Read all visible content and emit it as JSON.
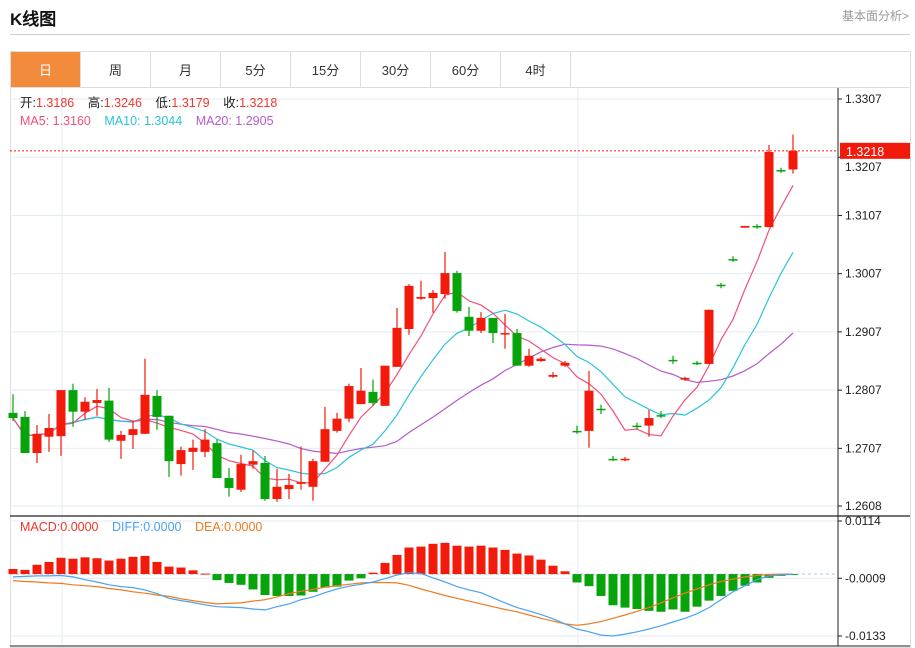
{
  "header": {
    "title": "K线图",
    "link": "基本面分析>"
  },
  "tabs": [
    {
      "label": "日",
      "active": true
    },
    {
      "label": "周"
    },
    {
      "label": "月"
    },
    {
      "label": "5分"
    },
    {
      "label": "15分"
    },
    {
      "label": "30分"
    },
    {
      "label": "60分"
    },
    {
      "label": "4时"
    }
  ],
  "ohlc_legend": {
    "open_label": "开:",
    "open": "1.3186",
    "high_label": "高:",
    "high": "1.3246",
    "low_label": "低:",
    "low": "1.3179",
    "close_label": "收:",
    "close": "1.3218"
  },
  "ma_legend": {
    "ma5": "MA5: 1.3160",
    "ma10": "MA10: 1.3044",
    "ma20": "MA20: 1.2905"
  },
  "macd_legend": {
    "macd": "MACD:0.0000",
    "diff": "DIFF:0.0000",
    "dea": "DEA:0.0000"
  },
  "colors": {
    "up": "#f21a0a",
    "down": "#06a30b",
    "ma5": "#f0507a",
    "ma10": "#29c4d8",
    "ma20": "#b45bc9",
    "diff": "#4aa3f0",
    "dea": "#f07a1e",
    "accent": "#f28b3c"
  },
  "chart_data": {
    "type": "candlestick",
    "current_price": "1.3218",
    "price_axis": {
      "ticks": [
        "1.3307",
        "1.3207",
        "1.3107",
        "1.3007",
        "1.2907",
        "1.2807",
        "1.2707",
        "1.2608"
      ],
      "range": [
        1.2608,
        1.3307
      ]
    },
    "macd_axis": {
      "ticks": [
        "0.0114",
        "-0.0009",
        "-0.0133"
      ],
      "range": [
        -0.0133,
        0.0114
      ]
    },
    "ohlc": [
      [
        1.2768,
        1.28,
        1.2754,
        1.2759
      ],
      [
        1.2761,
        1.2771,
        1.2699,
        1.2699
      ],
      [
        1.2699,
        1.2747,
        1.2682,
        1.2732
      ],
      [
        1.2727,
        1.2766,
        1.2701,
        1.2742
      ],
      [
        1.2728,
        1.2807,
        1.2694,
        1.2807
      ],
      [
        1.2807,
        1.2818,
        1.2744,
        1.277
      ],
      [
        1.277,
        1.2795,
        1.2756,
        1.2787
      ],
      [
        1.2785,
        1.2809,
        1.2763,
        1.279
      ],
      [
        1.2789,
        1.2811,
        1.2718,
        1.2722
      ],
      [
        1.272,
        1.2737,
        1.2689,
        1.273
      ],
      [
        1.273,
        1.2754,
        1.2706,
        1.274
      ],
      [
        1.2732,
        1.2861,
        1.2732,
        1.2799
      ],
      [
        1.2797,
        1.2807,
        1.2739,
        1.2761
      ],
      [
        1.2763,
        1.2763,
        1.2658,
        1.2685
      ],
      [
        1.268,
        1.271,
        1.266,
        1.2704
      ],
      [
        1.2701,
        1.2722,
        1.267,
        1.2708
      ],
      [
        1.2701,
        1.274,
        1.2692,
        1.2722
      ],
      [
        1.2716,
        1.2722,
        1.2656,
        1.2656
      ],
      [
        1.2656,
        1.2673,
        1.2624,
        1.2639
      ],
      [
        1.2636,
        1.2696,
        1.2632,
        1.268
      ],
      [
        1.2679,
        1.2703,
        1.2672,
        1.2685
      ],
      [
        1.2682,
        1.2694,
        1.2617,
        1.262
      ],
      [
        1.262,
        1.2672,
        1.2615,
        1.2641
      ],
      [
        1.2637,
        1.2663,
        1.262,
        1.2644
      ],
      [
        1.2646,
        1.271,
        1.2636,
        1.2649
      ],
      [
        1.2641,
        1.2689,
        1.2617,
        1.2685
      ],
      [
        1.2684,
        1.2778,
        1.2684,
        1.274
      ],
      [
        1.2737,
        1.2768,
        1.2734,
        1.2758
      ],
      [
        1.2758,
        1.2818,
        1.2752,
        1.2814
      ],
      [
        1.2783,
        1.2845,
        1.2783,
        1.2806
      ],
      [
        1.2804,
        1.2825,
        1.278,
        1.2785
      ],
      [
        1.278,
        1.2849,
        1.278,
        1.2849
      ],
      [
        1.2847,
        1.2948,
        1.2847,
        1.2914
      ],
      [
        1.2912,
        1.2989,
        1.2902,
        1.2986
      ],
      [
        1.2964,
        1.2995,
        1.2962,
        1.2967
      ],
      [
        1.2965,
        1.2979,
        1.294,
        1.2974
      ],
      [
        1.2972,
        1.3044,
        1.2964,
        1.3008
      ],
      [
        1.3008,
        1.3012,
        1.294,
        1.2943
      ],
      [
        1.2933,
        1.295,
        1.29,
        1.2909
      ],
      [
        1.2909,
        1.2941,
        1.2905,
        1.2931
      ],
      [
        1.2931,
        1.2931,
        1.2888,
        1.2905
      ],
      [
        1.2904,
        1.2938,
        1.2878,
        1.2905
      ],
      [
        1.2905,
        1.2912,
        1.2849,
        1.2849
      ],
      [
        1.2849,
        1.2878,
        1.2847,
        1.2866
      ],
      [
        1.2857,
        1.2864,
        1.2855,
        1.2861
      ],
      [
        1.283,
        1.2838,
        1.2828,
        1.2833
      ],
      [
        1.2849,
        1.2857,
        1.2847,
        1.2854
      ],
      [
        1.2737,
        1.2746,
        1.2732,
        1.2735
      ],
      [
        1.2737,
        1.284,
        1.2708,
        1.2806
      ],
      [
        1.2775,
        1.2782,
        1.2766,
        1.2773
      ],
      [
        1.2689,
        1.2694,
        1.2685,
        1.2688
      ],
      [
        1.2688,
        1.2692,
        1.2685,
        1.2689
      ],
      [
        1.2746,
        1.2751,
        1.274,
        1.2744
      ],
      [
        1.2746,
        1.2773,
        1.2727,
        1.2759
      ],
      [
        1.2764,
        1.2771,
        1.2759,
        1.2763
      ],
      [
        1.2859,
        1.2866,
        1.2852,
        1.2857
      ],
      [
        1.2825,
        1.283,
        1.2823,
        1.2828
      ],
      [
        1.2854,
        1.2857,
        1.285,
        1.2852
      ],
      [
        1.2852,
        1.2945,
        1.2852,
        1.2945
      ],
      [
        1.2988,
        1.2991,
        1.2982,
        1.2986
      ],
      [
        1.3032,
        1.3037,
        1.3027,
        1.3031
      ],
      [
        1.3086,
        1.3089,
        1.3086,
        1.3089
      ],
      [
        1.3089,
        1.3092,
        1.3084,
        1.3087
      ],
      [
        1.3087,
        1.3228,
        1.3087,
        1.3216
      ],
      [
        1.3185,
        1.3189,
        1.318,
        1.3183
      ],
      [
        1.3186,
        1.3246,
        1.3179,
        1.3218
      ]
    ],
    "macd_hist": [
      0.0011,
      0.0009,
      0.002,
      0.0026,
      0.0035,
      0.0033,
      0.0036,
      0.0034,
      0.0029,
      0.0033,
      0.0037,
      0.0039,
      0.0026,
      0.0016,
      0.0014,
      0.0008,
      0.0001,
      -0.0013,
      -0.0019,
      -0.0023,
      -0.0033,
      -0.0045,
      -0.0047,
      -0.0047,
      -0.0046,
      -0.0038,
      -0.0029,
      -0.0027,
      -0.0014,
      -0.0009,
      0.0003,
      0.0024,
      0.0041,
      0.0057,
      0.0059,
      0.0065,
      0.0067,
      0.0061,
      0.0059,
      0.0061,
      0.0057,
      0.0052,
      0.0044,
      0.004,
      0.0031,
      0.0018,
      0.0006,
      -0.0018,
      -0.0026,
      -0.0047,
      -0.0067,
      -0.0072,
      -0.0075,
      -0.0079,
      -0.0081,
      -0.0076,
      -0.0081,
      -0.007,
      -0.0057,
      -0.0047,
      -0.0036,
      -0.0025,
      -0.0018,
      -0.0008,
      -0.0004,
      -0.0001
    ],
    "diff": [
      -0.0006,
      -0.0005,
      -0.0004,
      -0.0004,
      -0.0003,
      -0.0006,
      -0.0012,
      -0.0017,
      -0.0023,
      -0.0027,
      -0.0029,
      -0.0034,
      -0.0042,
      -0.0052,
      -0.0057,
      -0.0061,
      -0.0066,
      -0.007,
      -0.0071,
      -0.0072,
      -0.0075,
      -0.0077,
      -0.007,
      -0.0064,
      -0.0055,
      -0.0049,
      -0.004,
      -0.0032,
      -0.0026,
      -0.0022,
      -0.0017,
      -0.001,
      -0.0002,
      0.0003,
      0.0001,
      -0.0008,
      -0.0017,
      -0.0027,
      -0.0034,
      -0.004,
      -0.0051,
      -0.0062,
      -0.0072,
      -0.0079,
      -0.0087,
      -0.0096,
      -0.0107,
      -0.0118,
      -0.0124,
      -0.0131,
      -0.0133,
      -0.0129,
      -0.0124,
      -0.0118,
      -0.0111,
      -0.0103,
      -0.0095,
      -0.0085,
      -0.0072,
      -0.0055,
      -0.0038,
      -0.0025,
      -0.0012,
      -0.0004,
      -0.0002,
      0.0
    ],
    "dea": [
      -0.0014,
      -0.0016,
      -0.0017,
      -0.0019,
      -0.002,
      -0.0023,
      -0.0025,
      -0.0027,
      -0.0031,
      -0.0034,
      -0.0038,
      -0.0041,
      -0.0045,
      -0.0048,
      -0.0053,
      -0.0057,
      -0.0061,
      -0.0064,
      -0.0063,
      -0.0062,
      -0.0058,
      -0.0055,
      -0.0049,
      -0.0042,
      -0.0037,
      -0.0033,
      -0.0028,
      -0.0025,
      -0.0022,
      -0.0019,
      -0.0018,
      -0.0018,
      -0.0019,
      -0.0024,
      -0.0032,
      -0.0039,
      -0.0046,
      -0.0052,
      -0.0058,
      -0.0064,
      -0.007,
      -0.0076,
      -0.0081,
      -0.0088,
      -0.0095,
      -0.0101,
      -0.0107,
      -0.011,
      -0.0107,
      -0.0102,
      -0.0095,
      -0.0088,
      -0.008,
      -0.0072,
      -0.0062,
      -0.0051,
      -0.0041,
      -0.0032,
      -0.0023,
      -0.0016,
      -0.0011,
      -0.0006,
      -0.0003,
      -0.0001,
      0.0,
      0.0
    ]
  }
}
